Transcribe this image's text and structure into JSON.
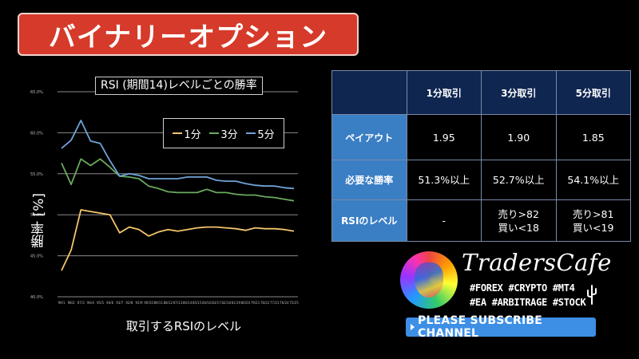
{
  "header": {
    "title": "バイナリーオプション"
  },
  "chart": {
    "title": "RSI (期間14)レベルごとの勝率",
    "ylabel": "勝率 [%]",
    "xlabel": "取引するRSIのレベル",
    "legend": [
      {
        "label": "1分",
        "color": "#f2c46b"
      },
      {
        "label": "3分",
        "color": "#6aaa5f"
      },
      {
        "label": "5分",
        "color": "#6fa3d8"
      }
    ]
  },
  "chart_data": {
    "type": "line",
    "title": "RSI (期間14)レベルごとの勝率",
    "xlabel": "取引するRSIのレベル",
    "ylabel": "勝率 [%]",
    "ylim": [
      40,
      65
    ],
    "yticks": [
      "40.0%",
      "45.0%",
      "50.0%",
      "55.0%",
      "60.0%",
      "65.0%"
    ],
    "grid": true,
    "legend_position": "upper right (inside)",
    "categories": [
      "99/1",
      "98/2",
      "97/3",
      "96/4",
      "95/5",
      "94/6",
      "93/7",
      "92/8",
      "91/9",
      "90/10",
      "89/11",
      "88/12",
      "87/13",
      "86/14",
      "85/15",
      "84/16",
      "83/17",
      "82/18",
      "81/19",
      "80/20",
      "79/21",
      "78/22",
      "77/23",
      "76/24",
      "75/25"
    ],
    "series": [
      {
        "name": "1分",
        "color": "#f2c46b",
        "values": [
          43.2,
          45.7,
          50.6,
          50.4,
          50.2,
          50.0,
          47.8,
          48.5,
          48.2,
          47.4,
          47.9,
          48.2,
          48.0,
          48.2,
          48.4,
          48.5,
          48.5,
          48.4,
          48.3,
          48.1,
          48.4,
          48.3,
          48.3,
          48.2,
          48.0
        ]
      },
      {
        "name": "3分",
        "color": "#6aaa5f",
        "values": [
          56.3,
          53.7,
          56.8,
          56.0,
          56.8,
          55.8,
          54.7,
          54.6,
          54.4,
          53.5,
          53.2,
          52.8,
          52.7,
          52.7,
          52.7,
          53.1,
          52.7,
          52.7,
          52.5,
          52.4,
          52.4,
          52.2,
          52.1,
          51.9,
          51.7
        ]
      },
      {
        "name": "5分",
        "color": "#6fa3d8",
        "values": [
          58.1,
          59.1,
          61.5,
          59.0,
          58.7,
          56.6,
          54.7,
          55.0,
          54.8,
          54.4,
          54.4,
          54.4,
          54.4,
          54.6,
          54.6,
          54.6,
          54.2,
          54.1,
          54.1,
          53.8,
          53.6,
          53.5,
          53.5,
          53.3,
          53.2
        ]
      }
    ]
  },
  "table": {
    "columns": [
      "",
      "1分取引",
      "3分取引",
      "5分取引"
    ],
    "rows": [
      {
        "label": "ペイアウト",
        "values": [
          "1.95",
          "1.90",
          "1.85"
        ]
      },
      {
        "label": "必要な勝率",
        "values": [
          "51.3%以上",
          "52.7%以上",
          "54.1%以上"
        ]
      },
      {
        "label": "RSIのレベル",
        "values": [
          {
            "line1": "-",
            "line2": ""
          },
          {
            "line1": "売り>82",
            "line2": "買い<18"
          },
          {
            "line1": "売り>81",
            "line2": "買い<19"
          }
        ]
      }
    ]
  },
  "brand": {
    "name": "TradersCafe",
    "tags_line1": "#FOREX #CRYPTO #MT4",
    "tags_line2": "#EA #ARBITRAGE #STOCK",
    "subscribe_label": "PLEASE SUBSCRIBE CHANNEL",
    "subscribe_color": "#3d8fe6"
  },
  "colors": {
    "banner_red": "#d63a2a",
    "table_header": "#0f2650",
    "table_rowhead": "#3a7ec4"
  }
}
